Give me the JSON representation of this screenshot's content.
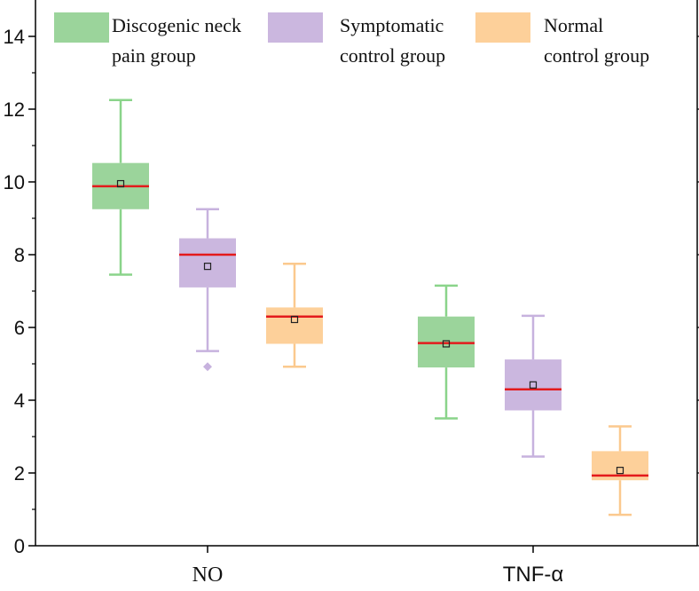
{
  "chart_data": {
    "type": "box",
    "title": "",
    "xlabel": "",
    "ylabel": "",
    "ylim": [
      0,
      15
    ],
    "yticks": [
      0,
      2,
      4,
      6,
      8,
      10,
      12,
      14
    ],
    "categories": [
      "NO",
      "TNF-α"
    ],
    "series": [
      {
        "name": "Discogenic neck pain group",
        "legend_lines": [
          "Discogenic neck",
          "pain group"
        ],
        "color": "#9bd49b",
        "stroke": "#8ad48a",
        "boxes": [
          {
            "whisker_low": 7.45,
            "q1": 9.25,
            "median": 9.88,
            "q3": 10.52,
            "whisker_high": 12.25,
            "mean": 9.95,
            "outliers": []
          },
          {
            "whisker_low": 3.5,
            "q1": 4.9,
            "median": 5.57,
            "q3": 6.3,
            "whisker_high": 7.15,
            "mean": 5.55,
            "outliers": []
          }
        ]
      },
      {
        "name": "Symptomatic control group",
        "legend_lines": [
          "Symptomatic",
          "control group"
        ],
        "color": "#cbb7df",
        "stroke": "#c7b2de",
        "boxes": [
          {
            "whisker_low": 5.35,
            "q1": 7.1,
            "median": 8.0,
            "q3": 8.45,
            "whisker_high": 9.25,
            "mean": 7.68,
            "outliers": [
              4.92
            ]
          },
          {
            "whisker_low": 2.45,
            "q1": 3.72,
            "median": 4.3,
            "q3": 5.12,
            "whisker_high": 6.32,
            "mean": 4.42,
            "outliers": []
          }
        ]
      },
      {
        "name": "Normal control group",
        "legend_lines": [
          "Normal",
          "control group"
        ],
        "color": "#fdd09a",
        "stroke": "#fbc98e",
        "boxes": [
          {
            "whisker_low": 4.92,
            "q1": 5.55,
            "median": 6.3,
            "q3": 6.55,
            "whisker_high": 7.75,
            "mean": 6.22,
            "outliers": []
          },
          {
            "whisker_low": 0.85,
            "q1": 1.8,
            "median": 1.93,
            "q3": 2.6,
            "whisker_high": 3.28,
            "mean": 2.07,
            "outliers": []
          }
        ]
      }
    ],
    "median_color": "#e31a1c",
    "legend_position": "top"
  }
}
